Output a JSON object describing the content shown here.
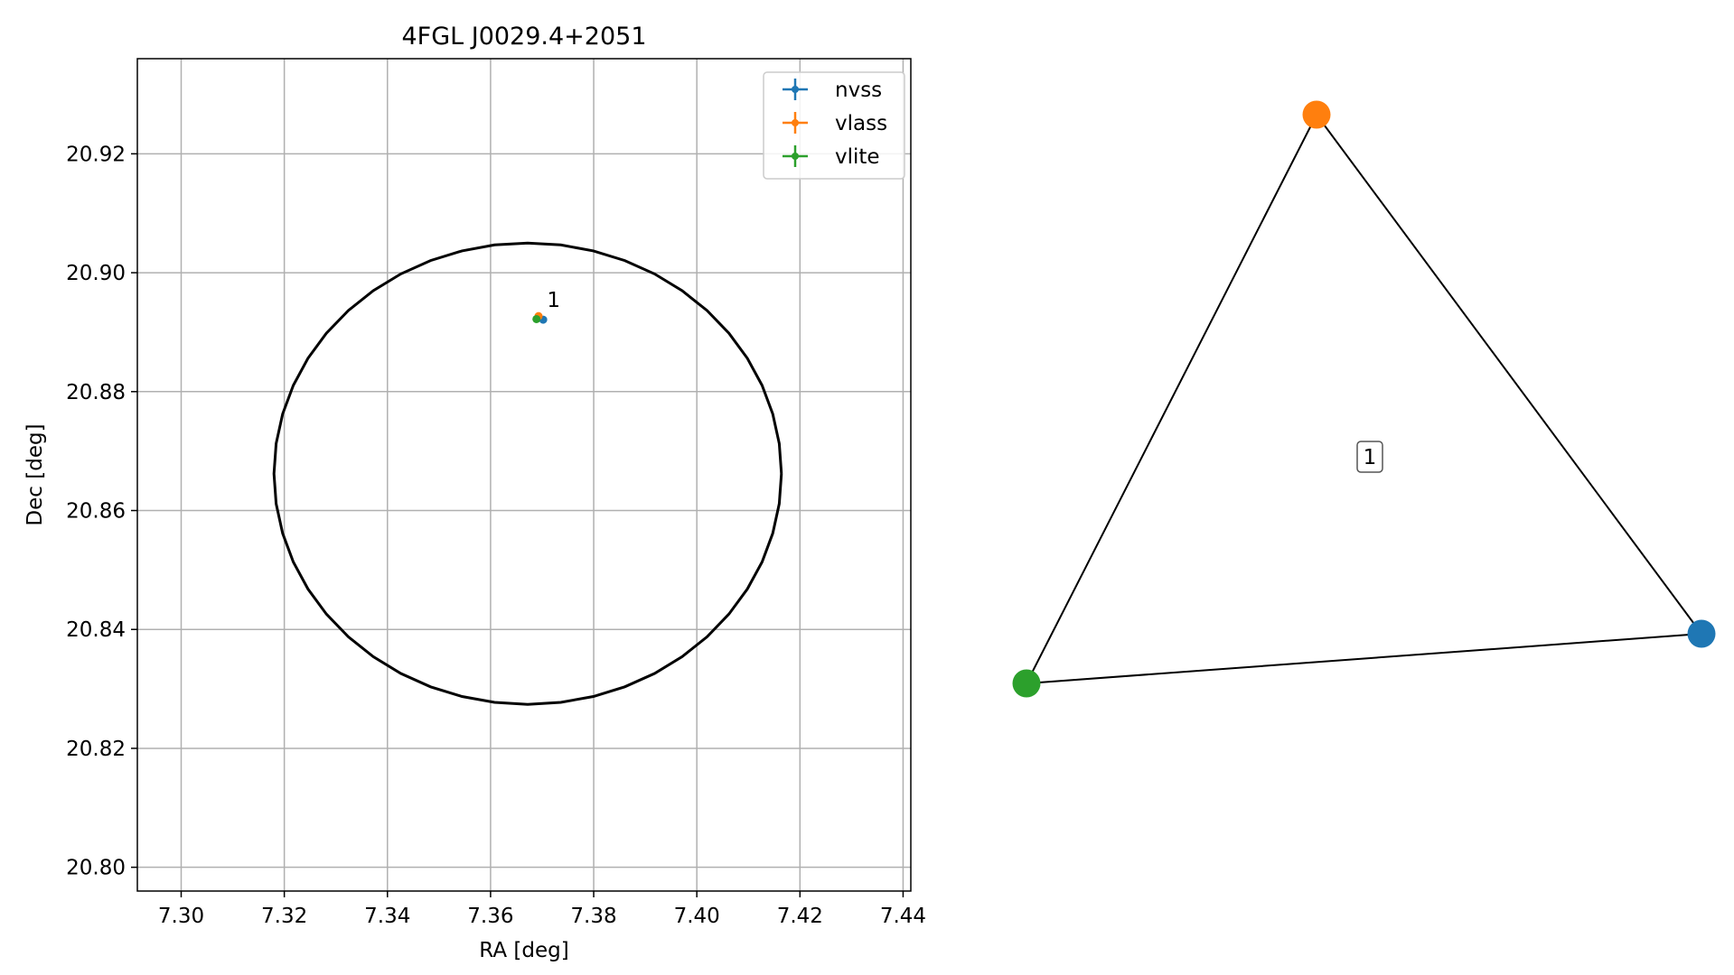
{
  "chart_data": [
    {
      "type": "scatter",
      "title": "4FGL J0029.4+2051",
      "xlabel": "RA [deg]",
      "ylabel": "Dec [deg]",
      "xlim": [
        7.2915,
        7.4415
      ],
      "ylim": [
        20.796,
        20.936
      ],
      "xticks": [
        "7.30",
        "7.32",
        "7.34",
        "7.36",
        "7.38",
        "7.40",
        "7.42",
        "7.44"
      ],
      "yticks": [
        "20.80",
        "20.82",
        "20.84",
        "20.86",
        "20.88",
        "20.90",
        "20.92"
      ],
      "grid": true,
      "legend": "top-right",
      "series": [
        {
          "name": "nvss",
          "color": "#1f77b4",
          "points": [
            {
              "x": 7.3702,
              "y": 20.8921
            }
          ]
        },
        {
          "name": "vlass",
          "color": "#ff7f0e",
          "points": [
            {
              "x": 7.3693,
              "y": 20.8927
            }
          ]
        },
        {
          "name": "vlite",
          "color": "#2ca02c",
          "points": [
            {
              "x": 7.3689,
              "y": 20.8922
            }
          ]
        }
      ],
      "ellipse": {
        "color": "#000000",
        "center": {
          "x": 7.3672,
          "y": 20.8662
        },
        "semi_axis_ra": 0.0492,
        "semi_axis_dec": 0.0388
      },
      "annotations": [
        {
          "text": "1",
          "x": 7.3706,
          "y": 20.8935
        }
      ]
    },
    {
      "type": "graph",
      "nodes": [
        {
          "id": "nvss",
          "color": "#1f77b4"
        },
        {
          "id": "vlass",
          "color": "#ff7f0e"
        },
        {
          "id": "vlite",
          "color": "#2ca02c"
        }
      ],
      "edges": [
        [
          "nvss",
          "vlass"
        ],
        [
          "vlass",
          "vlite"
        ],
        [
          "vlite",
          "nvss"
        ]
      ],
      "group_label": "1"
    }
  ]
}
